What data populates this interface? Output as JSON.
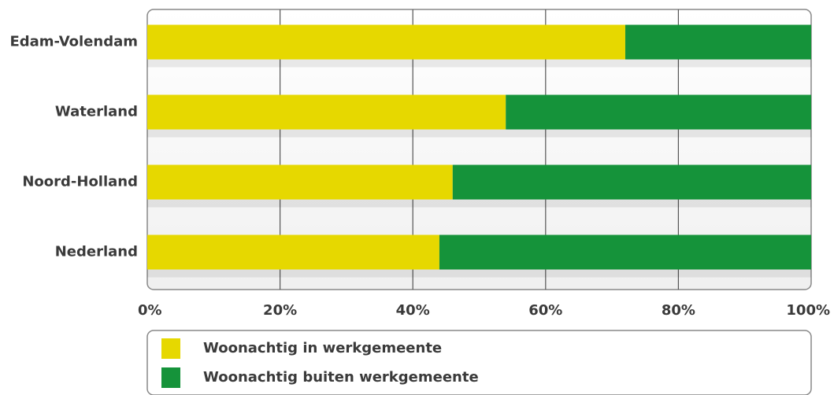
{
  "chart_data": {
    "type": "bar",
    "orientation": "horizontal",
    "stacked": true,
    "categories": [
      "Edam-Volendam",
      "Waterland",
      "Noord-Holland",
      "Nederland"
    ],
    "series": [
      {
        "name": "Woonachtig in werkgemeente",
        "color": "#e6d800",
        "values": [
          72,
          54,
          46,
          44
        ]
      },
      {
        "name": "Woonachtig buiten werkgemeente",
        "color": "#15933a",
        "values": [
          28,
          46,
          54,
          56
        ]
      }
    ],
    "xlim": [
      0,
      100
    ],
    "xticks": [
      {
        "value": 0,
        "label": "0%"
      },
      {
        "value": 20,
        "label": "20%"
      },
      {
        "value": 40,
        "label": "40%"
      },
      {
        "value": 60,
        "label": "60%"
      },
      {
        "value": 80,
        "label": "80%"
      },
      {
        "value": 100,
        "label": "100%"
      }
    ],
    "grid": true,
    "legend": "bottom"
  }
}
